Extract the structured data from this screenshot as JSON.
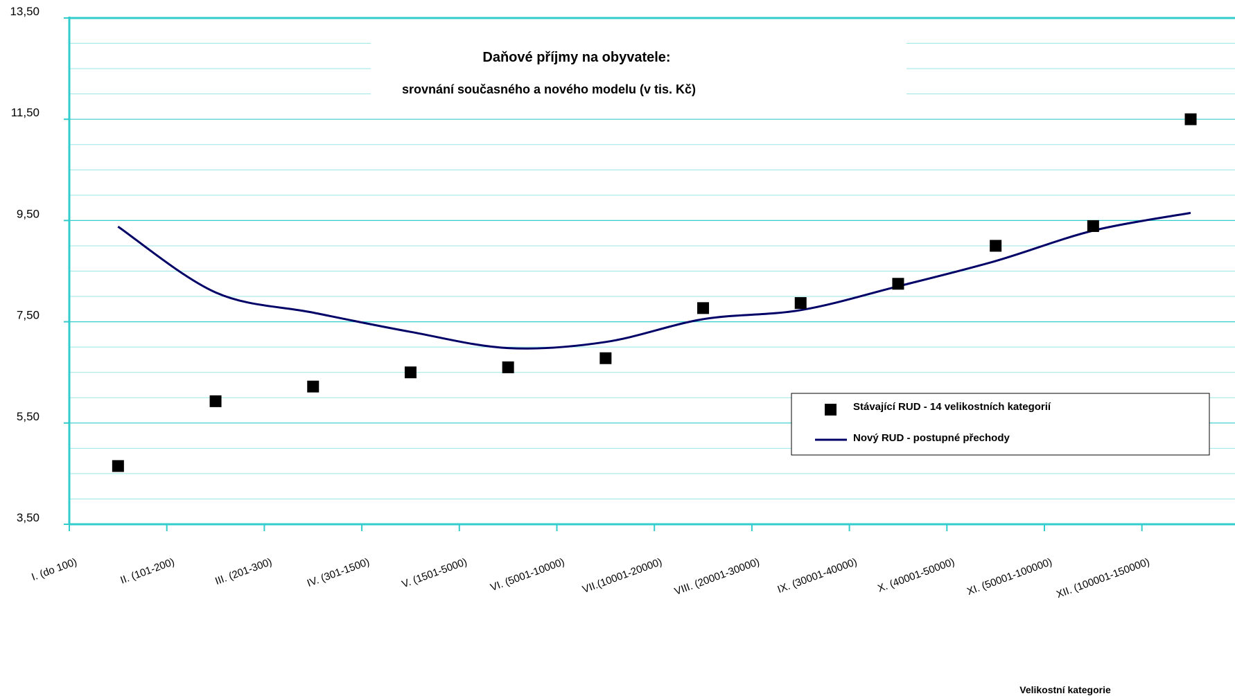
{
  "chart_data": {
    "type": "line",
    "title": "Daňové příjmy na obyvatele:",
    "subtitle": "srovnání současného a nového modelu (v tis. Kč)",
    "xlabel": "Velikostní kategorie",
    "ylabel": "",
    "ylim": [
      3.5,
      13.5
    ],
    "yticks": [
      3.5,
      5.5,
      7.5,
      9.5,
      11.5,
      13.5
    ],
    "ytick_labels": [
      "3,50",
      "5,50",
      "7,50",
      "9,50",
      "11,50",
      "13,50"
    ],
    "grid": true,
    "legend_position": "right",
    "categories": [
      "I. (do 100)",
      "II. (101-200)",
      "III. (201-300)",
      "IV. (301-1500)",
      "V. (1501-5000)",
      "VI. (5001-10000)",
      "VII.(10001-20000)",
      "VIII. (20001-30000)",
      "IX. (30001-40000)",
      "X. (40001-50000)",
      "XI. (50001-100000)",
      "XII. (100001-150000)"
    ],
    "series": [
      {
        "name": "Stávající RUD - 14 velikostních kategorií",
        "kind": "scatter",
        "color": "#000000",
        "values": [
          4.65,
          5.93,
          6.22,
          6.5,
          6.6,
          6.78,
          7.77,
          7.87,
          8.25,
          9.0,
          9.39,
          11.5
        ]
      },
      {
        "name": "Nový RUD - postupné přechody",
        "kind": "line",
        "color": "#000066",
        "values": [
          9.38,
          8.08,
          7.68,
          7.3,
          6.98,
          7.1,
          7.55,
          7.73,
          8.2,
          8.7,
          9.3,
          9.65
        ]
      }
    ]
  },
  "colors": {
    "axis": "#33CCCC",
    "grid": "#99E6E6",
    "line": "#000066",
    "marker": "#000000"
  }
}
